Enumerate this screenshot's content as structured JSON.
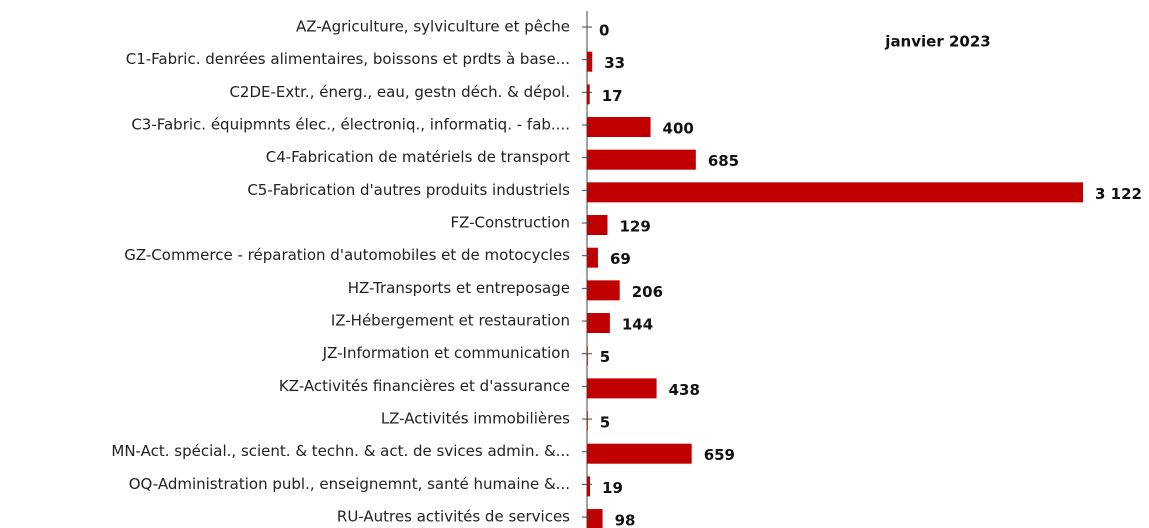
{
  "chart_data": {
    "type": "bar",
    "orientation": "horizontal",
    "categories": [
      "AZ-Agriculture, sylviculture et pêche",
      "C1-Fabric. denrées alimentaires, boissons et  prdts à base...",
      "C2DE-Extr., énerg., eau, gestn déch. & dépol.",
      "C3-Fabric. équipmnts élec., électroniq., informatiq. - fab....",
      "C4-Fabrication de matériels de transport",
      "C5-Fabrication d'autres produits industriels",
      "FZ-Construction",
      "GZ-Commerce - réparation d'automobiles et de motocycles",
      "HZ-Transports et entreposage",
      "IZ-Hébergement et restauration",
      "JZ-Information et communication",
      "KZ-Activités financières et d'assurance",
      "LZ-Activités immobilières",
      "MN-Act. spécial., scient. & techn. & act. de svices admin. &...",
      "OQ-Administration publ., enseignemnt, santé humaine &...",
      "RU-Autres activités de services"
    ],
    "series": [
      {
        "name": "janvier 2023",
        "color": "#c00000",
        "values": [
          0,
          33,
          17,
          400,
          685,
          3122,
          129,
          69,
          206,
          144,
          5,
          438,
          5,
          659,
          19,
          98
        ],
        "value_labels": [
          "0",
          "33",
          "17",
          "400",
          "685",
          "3 122",
          "129",
          "69",
          "206",
          "144",
          "5",
          "438",
          "5",
          "659",
          "19",
          "98"
        ]
      }
    ]
  }
}
